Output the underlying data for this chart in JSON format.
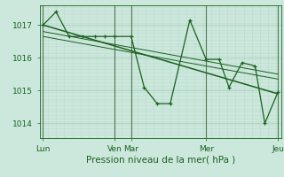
{
  "title": "",
  "xlabel": "Pression niveau de la mer( hPa )",
  "bg_color": "#cce8dc",
  "grid_major_color": "#aacfbe",
  "grid_minor_color": "#bbdacc",
  "line_color": "#1a6020",
  "ylim": [
    1013.55,
    1017.6
  ],
  "yticks": [
    1014,
    1015,
    1016,
    1017
  ],
  "day_positions": [
    0,
    22,
    27,
    50,
    72
  ],
  "day_labels": [
    "Lun",
    "Ven",
    "Mar",
    "Mer",
    "Jeu"
  ],
  "data_x": [
    0,
    4,
    8,
    12,
    16,
    19,
    22,
    27,
    31,
    35,
    39,
    45,
    50,
    54,
    57,
    61,
    65,
    68,
    72
  ],
  "data_y": [
    1017.0,
    1017.4,
    1016.65,
    1016.65,
    1016.65,
    1016.65,
    1016.65,
    1016.65,
    1015.1,
    1014.6,
    1014.6,
    1017.15,
    1015.95,
    1015.95,
    1015.1,
    1015.85,
    1015.75,
    1014.0,
    1014.95
  ],
  "trend1_x": [
    0,
    72
  ],
  "trend1_y": [
    1017.0,
    1014.9
  ],
  "trend2_x": [
    0,
    72
  ],
  "trend2_y": [
    1016.8,
    1015.5
  ],
  "trend3_x": [
    0,
    72
  ],
  "trend3_y": [
    1016.65,
    1015.35
  ],
  "xlim": [
    -1,
    73
  ],
  "vline_color": "#557755",
  "vline_positions": [
    0,
    22,
    27,
    50,
    72
  ]
}
